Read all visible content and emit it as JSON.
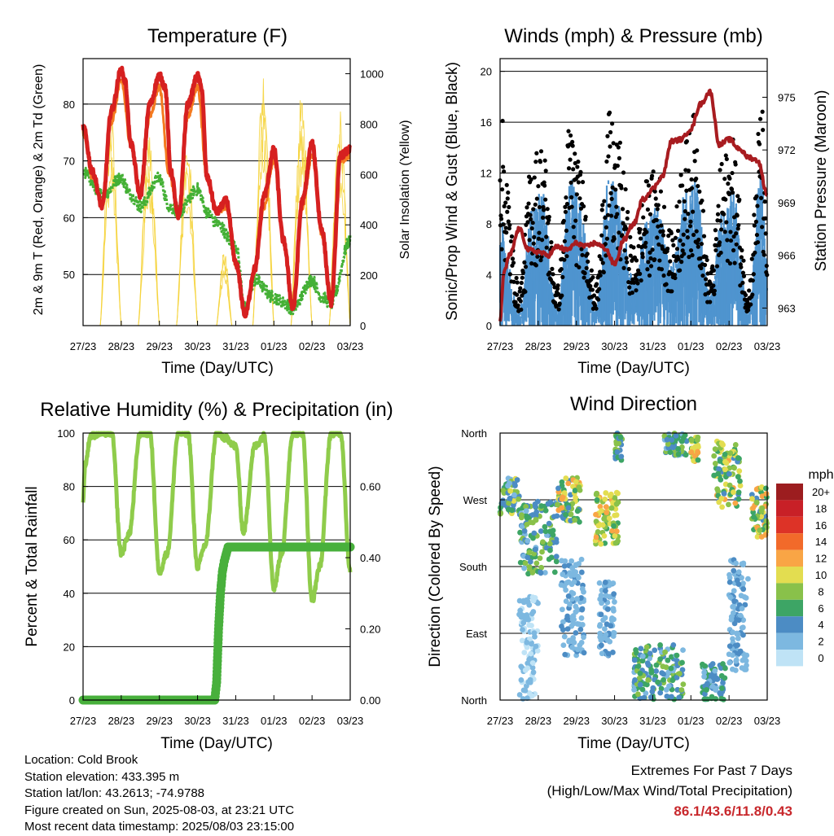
{
  "x_ticks": [
    "27/23",
    "28/23",
    "29/23",
    "30/23",
    "31/23",
    "01/23",
    "02/23",
    "03/23"
  ],
  "colors": {
    "red": "#d62020",
    "orange": "#f47b20",
    "green": "#44b035",
    "yellow": "#f5d33a",
    "black": "#000000",
    "blue": "#4f94cf",
    "maroon": "#a81c20",
    "rh": "#8fcc4b",
    "rain": "#48b03c",
    "extreme_values": "#c8282c"
  },
  "info": {
    "location": "Location: Cold Brook",
    "elevation": "Station elevation: 433.395 m",
    "latlon": "Station lat/lon: 43.2613; -74.9788",
    "created": "Figure created on Sun, 2025-08-03, at 23:21 UTC",
    "timestamp": "Most recent data timestamp: 2025/08/03 23:15:00"
  },
  "extremes": {
    "title": "Extremes For Past 7 Days",
    "subtitle": "(High/Low/Max Wind/Total Precipitation)",
    "values": "86.1/43.6/11.8/0.43"
  },
  "chart_data": [
    {
      "type": "line",
      "title": "Temperature (F)",
      "xlabel": "Time (Day/UTC)",
      "ylabel": "2m & 9m T (Red, Orange) & 2m Td (Green)",
      "y2label": "Solar Insolation (Yellow)",
      "ylim": [
        41,
        88
      ],
      "y_ticks": [
        50,
        60,
        70,
        80
      ],
      "y2lim": [
        0,
        1060
      ],
      "y2_ticks": [
        0,
        200,
        400,
        600,
        800,
        1000
      ],
      "grid": true,
      "series": [
        {
          "name": "2m T",
          "color": "red",
          "x": [
            0,
            0.25,
            0.5,
            0.75,
            1,
            1.1,
            1.25,
            1.5,
            1.75,
            2,
            2.15,
            2.3,
            2.5,
            2.75,
            3,
            3.1,
            3.25,
            3.5,
            3.75,
            4,
            4.25,
            4.5,
            4.75,
            5,
            5.25,
            5.5,
            5.75,
            6,
            6.25,
            6.5,
            6.75,
            7
          ],
          "y": [
            76,
            68,
            62,
            79,
            86,
            84,
            73,
            64,
            80,
            85,
            83,
            68,
            60,
            80,
            85,
            83,
            67,
            61,
            63,
            52,
            43,
            51,
            64,
            72,
            56,
            44,
            63,
            73,
            58,
            45,
            71,
            72
          ]
        },
        {
          "name": "9m T",
          "color": "orange",
          "x": [
            0,
            0.25,
            0.5,
            0.75,
            1,
            1.25,
            1.5,
            1.75,
            2,
            2.25,
            2.5,
            2.75,
            3,
            3.25,
            3.5,
            3.75,
            4,
            4.25,
            4.5,
            4.75,
            5,
            5.25,
            5.5,
            5.75,
            6,
            6.25,
            6.5,
            6.75,
            7
          ],
          "y": [
            75,
            67,
            62,
            77,
            84,
            73,
            64,
            78,
            83,
            68,
            60,
            78,
            83,
            67,
            61,
            62,
            52,
            43,
            51,
            62,
            70,
            56,
            45,
            62,
            71,
            57,
            45,
            70,
            71
          ]
        },
        {
          "name": "2m Td",
          "color": "green",
          "x": [
            0,
            0.5,
            1,
            1.25,
            1.5,
            2,
            2.25,
            2.5,
            3,
            3.25,
            3.5,
            4,
            4.25,
            4.5,
            5,
            5.25,
            5.5,
            6,
            6.25,
            6.5,
            7
          ],
          "y": [
            68,
            64,
            67,
            64,
            62,
            67,
            62,
            61,
            65,
            61,
            59,
            55,
            44,
            49,
            46,
            45,
            44,
            49,
            46,
            45,
            56
          ]
        }
      ],
      "solar": {
        "name": "Solar Insolation",
        "color": "yellow",
        "days": [
          {
            "start": 0.45,
            "peak": 0.72,
            "end": 1.0,
            "max": 870
          },
          {
            "start": 1.45,
            "peak": 1.72,
            "end": 2.0,
            "max": 780
          },
          {
            "start": 2.45,
            "peak": 2.72,
            "end": 3.0,
            "max": 760
          },
          {
            "start": 3.5,
            "peak": 3.62,
            "end": 3.9,
            "max": 300
          },
          {
            "start": 4.45,
            "peak": 4.72,
            "end": 5.0,
            "max": 1040
          },
          {
            "start": 5.45,
            "peak": 5.72,
            "end": 6.0,
            "max": 930
          },
          {
            "start": 6.45,
            "peak": 6.72,
            "end": 7.0,
            "max": 870
          }
        ]
      }
    },
    {
      "type": "scatter",
      "title": "Winds (mph) & Pressure (mb)",
      "xlabel": "Time (Day/UTC)",
      "ylabel": "Sonic/Prop Wind & Gust (Blue, Black)",
      "y2label": "Station Pressure (Maroon)",
      "ylim": [
        0,
        21
      ],
      "y_ticks": [
        0,
        4,
        8,
        12,
        16,
        20
      ],
      "y2lim": [
        962,
        977.2
      ],
      "y2_ticks": [
        963,
        966,
        969,
        972,
        975
      ],
      "grid": true,
      "wind_envelope": {
        "x": [
          0,
          0.5,
          0.85,
          1.1,
          1.5,
          1.85,
          2.1,
          2.5,
          2.85,
          3.1,
          3.5,
          3.85,
          4.1,
          4.5,
          4.85,
          5.1,
          5.5,
          5.85,
          6.1,
          6.5,
          6.85,
          7
        ],
        "gust": [
          16,
          3,
          13,
          14,
          3,
          16,
          12,
          3,
          16,
          14,
          6,
          11,
          12,
          7,
          14,
          16,
          4,
          13,
          14,
          3,
          17,
          6
        ],
        "wind": [
          7,
          1,
          8,
          9,
          1,
          10,
          8,
          1,
          10,
          9,
          3,
          7,
          8,
          4,
          9,
          10,
          2,
          8,
          9,
          1,
          11,
          4
        ]
      },
      "pressure": {
        "name": "Station Pressure",
        "color": "maroon",
        "x": [
          0,
          0.1,
          0.25,
          0.5,
          0.75,
          1,
          1.25,
          1.5,
          1.75,
          2,
          2.25,
          2.5,
          2.75,
          3,
          3.25,
          3.5,
          3.75,
          4,
          4.25,
          4.5,
          4.75,
          5,
          5.25,
          5.5,
          5.75,
          6,
          6.25,
          6.5,
          6.75,
          7
        ],
        "y": [
          962.3,
          965,
          966,
          967.5,
          966.3,
          966.2,
          966,
          966.5,
          966.3,
          966.7,
          966.5,
          966.7,
          966.4,
          965.5,
          966.9,
          967.8,
          969.2,
          969.8,
          970.5,
          972.5,
          972.6,
          973.2,
          974.6,
          975.3,
          972.3,
          972.6,
          972.1,
          971.6,
          971.4,
          969.5
        ]
      }
    },
    {
      "type": "line",
      "title": "Relative Humidity (%) & Precipitation (in)",
      "xlabel": "Time (Day/UTC)",
      "ylabel": "Percent & Total Rainfall",
      "ylim": [
        0,
        100
      ],
      "y_ticks": [
        0,
        20,
        40,
        60,
        80,
        100
      ],
      "y2lim": [
        0,
        0.75
      ],
      "y2_ticks": [
        "0.00",
        "0.20",
        "0.40",
        "0.60"
      ],
      "grid": true,
      "series": [
        {
          "name": "Relative Humidity",
          "color": "rh",
          "x": [
            0,
            0.05,
            0.2,
            0.5,
            0.75,
            1,
            1.2,
            1.5,
            1.75,
            2,
            2.2,
            2.5,
            2.75,
            3,
            3.2,
            3.5,
            3.75,
            4,
            4.2,
            4.5,
            4.75,
            5,
            5.2,
            5.5,
            5.75,
            6,
            6.2,
            6.5,
            6.75,
            7
          ],
          "y": [
            74,
            88,
            99,
            100,
            100,
            55,
            62,
            100,
            100,
            48,
            55,
            100,
            100,
            50,
            58,
            100,
            98,
            95,
            63,
            95,
            99,
            42,
            55,
            100,
            100,
            37,
            50,
            100,
            100,
            48
          ]
        },
        {
          "name": "Total Precipitation",
          "color": "rain",
          "x": [
            0,
            3.45,
            3.5,
            3.55,
            3.6,
            3.65,
            3.7,
            3.8,
            7
          ],
          "y": [
            0,
            0,
            0.05,
            0.2,
            0.3,
            0.36,
            0.39,
            0.43,
            0.43
          ]
        }
      ]
    },
    {
      "type": "scatter",
      "title": "Wind Direction",
      "xlabel": "Time (Day/UTC)",
      "ylabel": "Direction (Colored By Speed)",
      "y_ticks": [
        "North",
        "East",
        "South",
        "West",
        "North"
      ],
      "ylim": [
        0,
        360
      ],
      "grid": true,
      "clusters": [
        {
          "x": [
            0,
            0.5
          ],
          "dir": [
            250,
            300
          ],
          "spd": [
            2,
            10
          ]
        },
        {
          "x": [
            0.5,
            1.5
          ],
          "dir": [
            170,
            270
          ],
          "spd": [
            2,
            9
          ]
        },
        {
          "x": [
            0.5,
            1.0
          ],
          "dir": [
            0,
            140
          ],
          "spd": [
            0,
            2
          ]
        },
        {
          "x": [
            1.5,
            2.1
          ],
          "dir": [
            240,
            300
          ],
          "spd": [
            4,
            12
          ]
        },
        {
          "x": [
            1.6,
            2.2
          ],
          "dir": [
            60,
            190
          ],
          "spd": [
            1,
            4
          ]
        },
        {
          "x": [
            2.5,
            3.1
          ],
          "dir": [
            210,
            280
          ],
          "spd": [
            6,
            12
          ]
        },
        {
          "x": [
            2.6,
            3.0
          ],
          "dir": [
            60,
            160
          ],
          "spd": [
            1,
            4
          ]
        },
        {
          "x": [
            3.0,
            3.2
          ],
          "dir": [
            320,
            360
          ],
          "spd": [
            4,
            8
          ]
        },
        {
          "x": [
            3.5,
            4.8
          ],
          "dir": [
            0,
            75
          ],
          "spd": [
            2,
            8
          ]
        },
        {
          "x": [
            4.3,
            4.9
          ],
          "dir": [
            330,
            360
          ],
          "spd": [
            2,
            8
          ]
        },
        {
          "x": [
            5.0,
            5.2
          ],
          "dir": [
            320,
            355
          ],
          "spd": [
            6,
            12
          ]
        },
        {
          "x": [
            5.3,
            5.9
          ],
          "dir": [
            0,
            50
          ],
          "spd": [
            2,
            7
          ]
        },
        {
          "x": [
            5.6,
            6.3
          ],
          "dir": [
            260,
            350
          ],
          "spd": [
            4,
            12
          ]
        },
        {
          "x": [
            6.0,
            6.5
          ],
          "dir": [
            40,
            190
          ],
          "spd": [
            1,
            4
          ]
        },
        {
          "x": [
            6.6,
            7.0
          ],
          "dir": [
            220,
            290
          ],
          "spd": [
            4,
            12
          ]
        }
      ],
      "legend": {
        "title": "mph",
        "labels": [
          "20+",
          "18",
          "16",
          "14",
          "12",
          "10",
          "8",
          "6",
          "4",
          "2",
          "0"
        ],
        "colors": [
          "#9c1d1f",
          "#c82027",
          "#dd3327",
          "#f26a2a",
          "#f9a545",
          "#e3dd50",
          "#89c14a",
          "#3da565",
          "#4c8cc4",
          "#7db8e0",
          "#bfe3f6"
        ]
      }
    }
  ]
}
